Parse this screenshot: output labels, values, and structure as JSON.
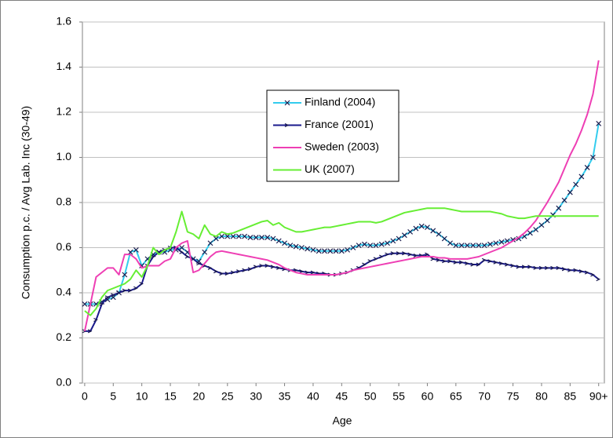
{
  "chart_data": {
    "type": "line",
    "x_label": "Age",
    "y_label": "Consumption p.c. / Avg Lab. Inc (30-49)",
    "x": [
      0,
      1,
      2,
      3,
      4,
      5,
      6,
      7,
      8,
      9,
      10,
      11,
      12,
      13,
      14,
      15,
      16,
      17,
      18,
      19,
      20,
      21,
      22,
      23,
      24,
      25,
      26,
      27,
      28,
      29,
      30,
      31,
      32,
      33,
      34,
      35,
      36,
      37,
      38,
      39,
      40,
      41,
      42,
      43,
      44,
      45,
      46,
      47,
      48,
      49,
      50,
      51,
      52,
      53,
      54,
      55,
      56,
      57,
      58,
      59,
      60,
      61,
      62,
      63,
      64,
      65,
      66,
      67,
      68,
      69,
      70,
      71,
      72,
      73,
      74,
      75,
      76,
      77,
      78,
      79,
      80,
      81,
      82,
      83,
      84,
      85,
      86,
      87,
      88,
      89,
      90
    ],
    "xlim": [
      -0.4,
      91
    ],
    "xticks": [
      0,
      5,
      10,
      15,
      20,
      25,
      30,
      35,
      40,
      45,
      50,
      55,
      60,
      65,
      70,
      75,
      80,
      85,
      {
        "value": 90,
        "label": "90+"
      }
    ],
    "ylim": [
      0,
      1.6
    ],
    "yticks": [
      {
        "value": 0,
        "label": "0.0"
      },
      0.2,
      0.4,
      0.6,
      0.8,
      {
        "value": 1,
        "label": "1.0"
      },
      1.2,
      1.4,
      1.6
    ],
    "grid": true,
    "series": [
      {
        "name": "Finland (2004)",
        "color": "#33ccee",
        "marker": "x",
        "values": [
          0.35,
          0.35,
          0.35,
          0.36,
          0.37,
          0.38,
          0.4,
          0.48,
          0.58,
          0.59,
          0.52,
          0.55,
          0.57,
          0.58,
          0.58,
          0.59,
          0.59,
          0.6,
          0.58,
          0.55,
          0.54,
          0.58,
          0.62,
          0.64,
          0.65,
          0.65,
          0.65,
          0.65,
          0.65,
          0.645,
          0.645,
          0.645,
          0.645,
          0.64,
          0.63,
          0.62,
          0.61,
          0.605,
          0.6,
          0.595,
          0.59,
          0.585,
          0.585,
          0.585,
          0.585,
          0.585,
          0.59,
          0.6,
          0.61,
          0.615,
          0.61,
          0.61,
          0.615,
          0.62,
          0.63,
          0.64,
          0.655,
          0.67,
          0.685,
          0.695,
          0.69,
          0.675,
          0.66,
          0.64,
          0.62,
          0.61,
          0.61,
          0.61,
          0.61,
          0.61,
          0.61,
          0.615,
          0.62,
          0.625,
          0.63,
          0.635,
          0.64,
          0.65,
          0.665,
          0.68,
          0.7,
          0.72,
          0.745,
          0.775,
          0.81,
          0.845,
          0.88,
          0.915,
          0.955,
          1.0,
          1.15
        ]
      },
      {
        "name": "France (2001)",
        "color": "#1a1a8c",
        "marker": "dash",
        "values": [
          0.23,
          0.23,
          0.28,
          0.35,
          0.38,
          0.39,
          0.4,
          0.41,
          0.41,
          0.42,
          0.44,
          0.52,
          0.56,
          0.58,
          0.59,
          0.6,
          0.6,
          0.58,
          0.56,
          0.55,
          0.53,
          0.52,
          0.51,
          0.495,
          0.485,
          0.485,
          0.49,
          0.495,
          0.5,
          0.505,
          0.515,
          0.52,
          0.52,
          0.515,
          0.51,
          0.505,
          0.5,
          0.5,
          0.495,
          0.49,
          0.49,
          0.485,
          0.485,
          0.48,
          0.48,
          0.485,
          0.49,
          0.5,
          0.51,
          0.525,
          0.54,
          0.55,
          0.56,
          0.57,
          0.575,
          0.575,
          0.575,
          0.57,
          0.565,
          0.565,
          0.57,
          0.55,
          0.545,
          0.54,
          0.54,
          0.535,
          0.535,
          0.53,
          0.525,
          0.525,
          0.545,
          0.54,
          0.535,
          0.53,
          0.525,
          0.52,
          0.515,
          0.515,
          0.515,
          0.51,
          0.51,
          0.51,
          0.51,
          0.51,
          0.505,
          0.5,
          0.5,
          0.495,
          0.49,
          0.48,
          0.46
        ]
      },
      {
        "name": "Sweden (2003)",
        "color": "#ee3fb4",
        "marker": null,
        "values": [
          0.23,
          0.35,
          0.47,
          0.49,
          0.51,
          0.51,
          0.48,
          0.57,
          0.57,
          0.55,
          0.51,
          0.52,
          0.52,
          0.52,
          0.54,
          0.55,
          0.6,
          0.62,
          0.63,
          0.49,
          0.5,
          0.53,
          0.56,
          0.58,
          0.585,
          0.58,
          0.575,
          0.57,
          0.565,
          0.56,
          0.555,
          0.55,
          0.545,
          0.535,
          0.525,
          0.51,
          0.5,
          0.49,
          0.485,
          0.48,
          0.48,
          0.48,
          0.48,
          0.48,
          0.48,
          0.485,
          0.49,
          0.5,
          0.505,
          0.51,
          0.515,
          0.52,
          0.525,
          0.53,
          0.535,
          0.54,
          0.545,
          0.55,
          0.555,
          0.56,
          0.56,
          0.56,
          0.555,
          0.555,
          0.55,
          0.55,
          0.55,
          0.55,
          0.555,
          0.56,
          0.57,
          0.58,
          0.59,
          0.6,
          0.615,
          0.63,
          0.645,
          0.665,
          0.69,
          0.72,
          0.76,
          0.8,
          0.845,
          0.89,
          0.95,
          1.01,
          1.06,
          1.12,
          1.19,
          1.28,
          1.43
        ]
      },
      {
        "name": "UK (2007)",
        "color": "#66ee33",
        "marker": null,
        "values": [
          0.32,
          0.3,
          0.33,
          0.38,
          0.41,
          0.42,
          0.43,
          0.44,
          0.46,
          0.5,
          0.47,
          0.52,
          0.6,
          0.57,
          0.59,
          0.6,
          0.67,
          0.76,
          0.67,
          0.66,
          0.64,
          0.7,
          0.66,
          0.65,
          0.67,
          0.66,
          0.665,
          0.675,
          0.685,
          0.695,
          0.705,
          0.715,
          0.72,
          0.7,
          0.71,
          0.69,
          0.68,
          0.67,
          0.67,
          0.675,
          0.68,
          0.685,
          0.69,
          0.69,
          0.695,
          0.7,
          0.705,
          0.71,
          0.715,
          0.715,
          0.715,
          0.71,
          0.715,
          0.725,
          0.735,
          0.745,
          0.755,
          0.76,
          0.765,
          0.77,
          0.775,
          0.775,
          0.775,
          0.775,
          0.77,
          0.765,
          0.76,
          0.76,
          0.76,
          0.76,
          0.76,
          0.76,
          0.755,
          0.75,
          0.74,
          0.735,
          0.73,
          0.73,
          0.735,
          0.74,
          0.74,
          0.74,
          0.74,
          0.74,
          0.74,
          0.74,
          0.74,
          0.74,
          0.74,
          0.74,
          0.74
        ]
      }
    ]
  }
}
